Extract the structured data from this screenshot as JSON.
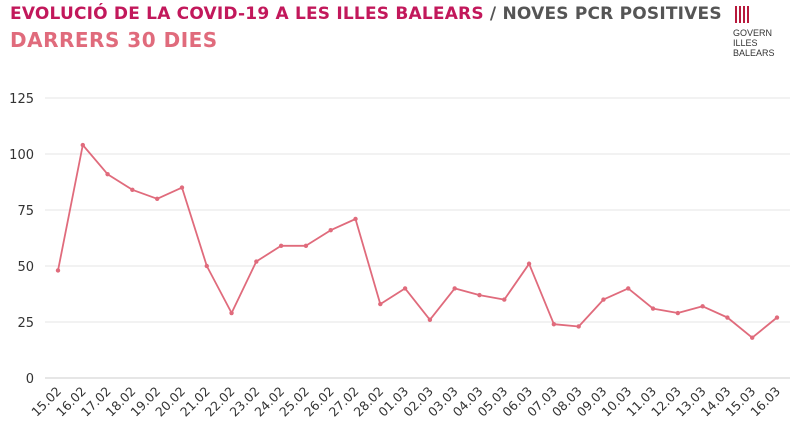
{
  "header": {
    "title_main": "EVOLUCIÓ DE LA COVID-19 A LES ILLES BALEARS",
    "title_sep": "/",
    "title_sub": "NOVES PCR POSITIVES",
    "subtitle": "DARRERS 30 DIES"
  },
  "logo": {
    "line1": "GOVERN",
    "line2": "ILLES",
    "line3": "BALEARS"
  },
  "colors": {
    "title": "#c2185b",
    "subtitle": "#e06b7c",
    "line": "#e06b7c",
    "grid": "#e6e6e6",
    "axis_text": "#333333"
  },
  "chart_data": {
    "type": "line",
    "title": "",
    "xlabel": "",
    "ylabel": "",
    "ylim": [
      0,
      125
    ],
    "yticks": [
      0,
      25,
      50,
      75,
      100,
      125
    ],
    "grid": true,
    "categories": [
      "15.02",
      "16.02",
      "17.02",
      "18.02",
      "19.02",
      "20.02",
      "21.02",
      "22.02",
      "23.02",
      "24.02",
      "25.02",
      "26.02",
      "27.02",
      "28.02",
      "01.03",
      "02.03",
      "03.03",
      "04.03",
      "05.03",
      "06.03",
      "07.03",
      "08.03",
      "09.03",
      "10.03",
      "11.03",
      "12.03",
      "13.03",
      "14.03",
      "15.03",
      "16.03"
    ],
    "series": [
      {
        "values": [
          48,
          104,
          91,
          84,
          80,
          85,
          50,
          29,
          52,
          59,
          59,
          66,
          71,
          33,
          40,
          26,
          40,
          37,
          35,
          51,
          24,
          23,
          35,
          40,
          31,
          29,
          32,
          27,
          18,
          27
        ]
      }
    ]
  }
}
